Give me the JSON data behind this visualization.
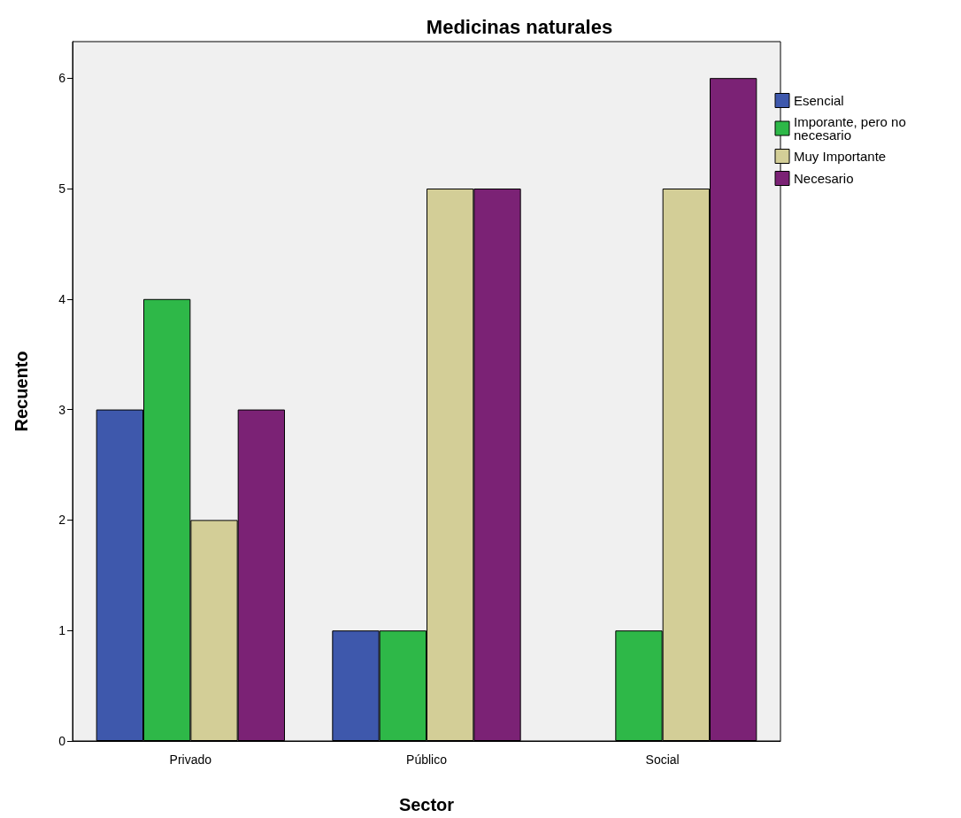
{
  "chart_data": {
    "type": "bar",
    "title": "Medicinas naturales",
    "xlabel": "Sector",
    "ylabel": "Recuento",
    "categories": [
      "Privado",
      "Público",
      "Social"
    ],
    "series": [
      {
        "name": "Esencial",
        "color": "#3e58ac",
        "values": [
          3,
          1,
          null
        ]
      },
      {
        "name": "Imporante, pero no necesario",
        "color": "#2eb848",
        "values": [
          4,
          1,
          1
        ]
      },
      {
        "name": "Muy Importante",
        "color": "#d3ce97",
        "values": [
          2,
          5,
          5
        ]
      },
      {
        "name": "Necesario",
        "color": "#7b2275",
        "values": [
          3,
          5,
          6
        ]
      }
    ],
    "ylim": [
      0,
      6.33
    ],
    "yticks": [
      0,
      1,
      2,
      3,
      4,
      5,
      6
    ],
    "grid": false,
    "legend": "right"
  }
}
